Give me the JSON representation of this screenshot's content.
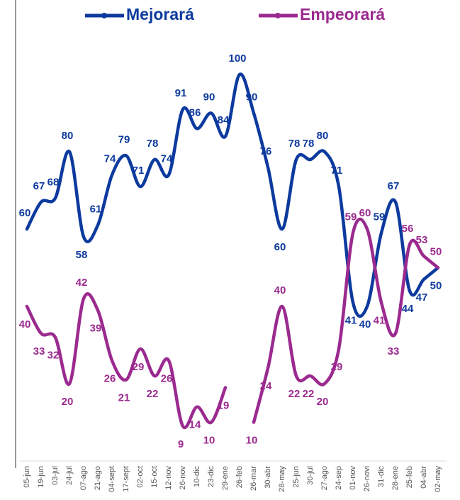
{
  "chart_data": {
    "type": "line",
    "categories": [
      "05-jun",
      "19-jun",
      "03-jul",
      "24-jul",
      "07-ago",
      "21-ago",
      "04-sept",
      "17-sept",
      "02-oct",
      "15-oct",
      "12-nov",
      "26-nov",
      "10-dic",
      "23-dic",
      "29-ene",
      "26-feb",
      "26-mar",
      "30-abr",
      "28-may",
      "25-jun",
      "30-jul",
      "27-ago",
      "24-sep",
      "01-nov",
      "26-novi",
      "31-dic",
      "28-ene",
      "25-feb",
      "04-abr",
      "02-may"
    ],
    "series": [
      {
        "name": "Mejorará",
        "color": "#0d3a9e",
        "values": [
          60,
          67,
          68,
          80,
          58,
          61,
          74,
          79,
          71,
          78,
          74,
          91,
          86,
          90,
          84,
          100,
          90,
          76,
          60,
          78,
          78,
          80,
          71,
          41,
          40,
          59,
          67,
          44,
          47,
          50
        ]
      },
      {
        "name": "Empeorará",
        "color": "#9b2a8f",
        "values": [
          40,
          33,
          32,
          20,
          42,
          39,
          26,
          21,
          29,
          22,
          26,
          9,
          14,
          10,
          19,
          null,
          10,
          24,
          40,
          22,
          22,
          20,
          29,
          59,
          60,
          41,
          33,
          56,
          53,
          50
        ]
      }
    ],
    "ylim": [
      0,
      100
    ],
    "legend": "top"
  }
}
